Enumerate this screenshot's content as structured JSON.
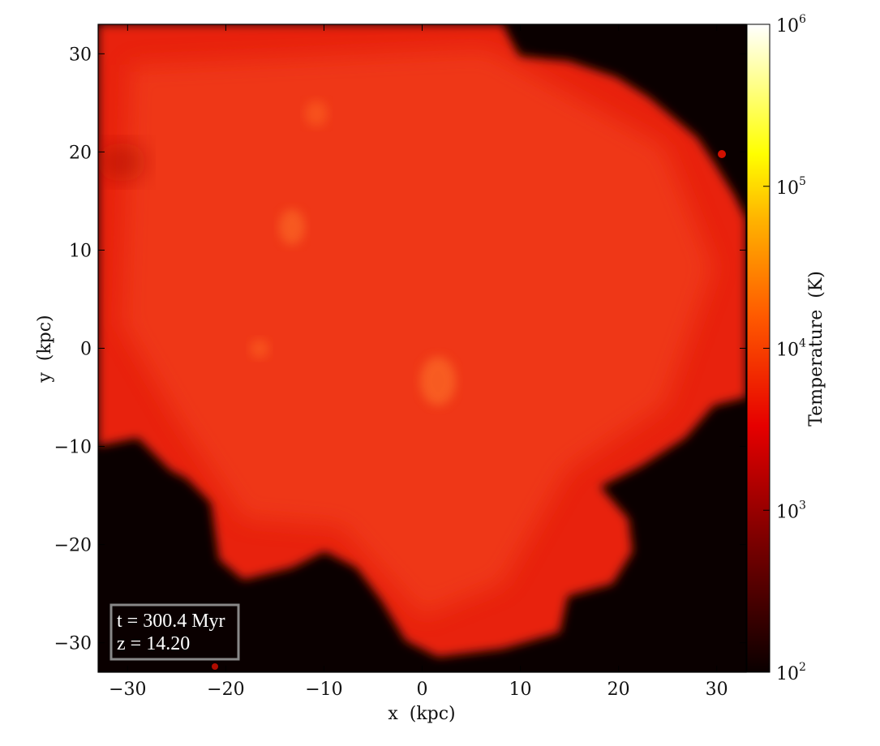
{
  "chart_data": {
    "type": "heatmap",
    "title": "",
    "xlabel": "x  (kpc)",
    "ylabel": "y  (kpc)",
    "xlim": [
      -33,
      33
    ],
    "ylim": [
      -33,
      33
    ],
    "xticks": [
      -30,
      -20,
      -10,
      0,
      10,
      20,
      30
    ],
    "yticks": [
      -30,
      -20,
      -10,
      0,
      10,
      20,
      30
    ],
    "x_tick_labels": [
      "−30",
      "−20",
      "−10",
      "0",
      "10",
      "20",
      "30"
    ],
    "y_tick_labels": [
      "−30",
      "−20",
      "−10",
      "0",
      "10",
      "20",
      "30"
    ],
    "colorbar": {
      "label": "Temperature  (K)",
      "scale": "log",
      "range": [
        100,
        1000000
      ],
      "ticks": [
        {
          "value": 100,
          "base": "10",
          "exp": "2"
        },
        {
          "value": 1000,
          "base": "10",
          "exp": "3"
        },
        {
          "value": 10000,
          "base": "10",
          "exp": "4"
        },
        {
          "value": 100000,
          "base": "10",
          "exp": "5"
        },
        {
          "value": 1000000,
          "base": "10",
          "exp": "6"
        }
      ],
      "colormap": "hot"
    },
    "annotation": {
      "line1": "t = 300.4 Myr",
      "line2": "z = 14.20"
    },
    "background_value_K": 100,
    "typical_value_K": 5000,
    "grid": false
  }
}
